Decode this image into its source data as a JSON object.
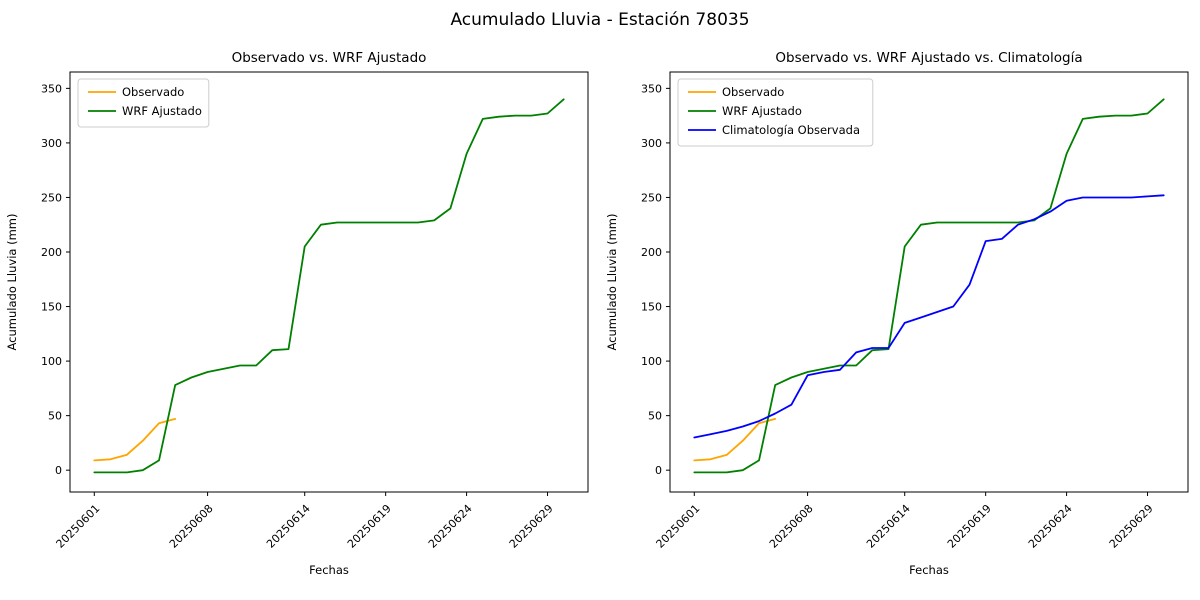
{
  "figure": {
    "suptitle": "Acumulado Lluvia - Estación 78035",
    "background": "#ffffff"
  },
  "colors": {
    "observado": "#ffa500",
    "wrf": "#008000",
    "climatologia": "#0000ff"
  },
  "chart_data": [
    {
      "type": "line",
      "title": "Observado vs. WRF Ajustado",
      "xlabel": "Fechas",
      "ylabel": "Acumulado Lluvia (mm)",
      "grid": false,
      "legend_position": "upper left",
      "xlim": [
        -0.5,
        31.5
      ],
      "ylim": [
        -20,
        365
      ],
      "x": [
        1,
        2,
        3,
        4,
        5,
        6,
        7,
        8,
        9,
        10,
        11,
        12,
        13,
        14,
        15,
        16,
        17,
        18,
        19,
        20,
        21,
        22,
        23,
        24,
        25,
        26,
        27,
        28,
        29,
        30
      ],
      "xticks": {
        "positions": [
          1,
          8,
          14,
          19,
          24,
          29
        ],
        "labels": [
          "20250601",
          "20250608",
          "20250614",
          "20250619",
          "20250624",
          "20250629"
        ]
      },
      "yticks": [
        0,
        50,
        100,
        150,
        200,
        250,
        300,
        350
      ],
      "series": [
        {
          "name": "Observado",
          "color": "#ffa500",
          "values": [
            9,
            10,
            14,
            27,
            43,
            47,
            null,
            null,
            null,
            null,
            null,
            null,
            null,
            null,
            null,
            null,
            null,
            null,
            null,
            null,
            null,
            null,
            null,
            null,
            null,
            null,
            null,
            null,
            null,
            null
          ]
        },
        {
          "name": "WRF Ajustado",
          "color": "#008000",
          "values": [
            -2,
            -2,
            -2,
            0,
            9,
            78,
            85,
            90,
            93,
            96,
            96,
            110,
            111,
            205,
            225,
            227,
            227,
            227,
            227,
            227,
            227,
            229,
            240,
            290,
            322,
            324,
            325,
            325,
            327,
            340
          ]
        }
      ]
    },
    {
      "type": "line",
      "title": "Observado vs. WRF Ajustado vs. Climatología",
      "xlabel": "Fechas",
      "ylabel": "Acumulado Lluvia (mm)",
      "grid": false,
      "legend_position": "upper left",
      "xlim": [
        -0.5,
        31.5
      ],
      "ylim": [
        -20,
        365
      ],
      "x": [
        1,
        2,
        3,
        4,
        5,
        6,
        7,
        8,
        9,
        10,
        11,
        12,
        13,
        14,
        15,
        16,
        17,
        18,
        19,
        20,
        21,
        22,
        23,
        24,
        25,
        26,
        27,
        28,
        29,
        30
      ],
      "xticks": {
        "positions": [
          1,
          8,
          14,
          19,
          24,
          29
        ],
        "labels": [
          "20250601",
          "20250608",
          "20250614",
          "20250619",
          "20250624",
          "20250629"
        ]
      },
      "yticks": [
        0,
        50,
        100,
        150,
        200,
        250,
        300,
        350
      ],
      "series": [
        {
          "name": "Observado",
          "color": "#ffa500",
          "values": [
            9,
            10,
            14,
            27,
            43,
            47,
            null,
            null,
            null,
            null,
            null,
            null,
            null,
            null,
            null,
            null,
            null,
            null,
            null,
            null,
            null,
            null,
            null,
            null,
            null,
            null,
            null,
            null,
            null,
            null
          ]
        },
        {
          "name": "WRF Ajustado",
          "color": "#008000",
          "values": [
            -2,
            -2,
            -2,
            0,
            9,
            78,
            85,
            90,
            93,
            96,
            96,
            110,
            111,
            205,
            225,
            227,
            227,
            227,
            227,
            227,
            227,
            229,
            240,
            290,
            322,
            324,
            325,
            325,
            327,
            340
          ]
        },
        {
          "name": "Climatología Observada",
          "color": "#0000ff",
          "values": [
            30,
            33,
            36,
            40,
            45,
            52,
            60,
            87,
            90,
            92,
            108,
            112,
            112,
            135,
            140,
            145,
            150,
            170,
            210,
            212,
            225,
            230,
            237,
            247,
            250,
            250,
            250,
            250,
            251,
            252
          ]
        }
      ]
    }
  ]
}
